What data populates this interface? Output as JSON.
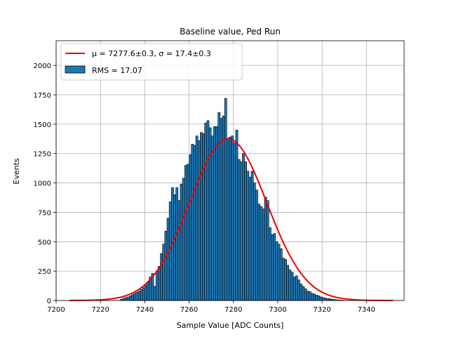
{
  "chart_data": {
    "type": "bar",
    "title": "Baseline value, Ped Run",
    "xlabel": "Sample Value [ADC Counts]",
    "ylabel": "Events",
    "xlim": [
      7200,
      7357
    ],
    "ylim": [
      0,
      2210
    ],
    "x_ticks": [
      7200,
      7220,
      7240,
      7260,
      7280,
      7300,
      7320,
      7340
    ],
    "y_ticks": [
      0,
      250,
      500,
      750,
      1000,
      1250,
      1500,
      1750,
      2000
    ],
    "grid": true,
    "legend_position": "top-left",
    "histogram": {
      "name": "RMS = 17.07",
      "color": "#1f77b4",
      "edge_color": "#000000",
      "bin_width": 1,
      "bin_starts": [
        7229,
        7230,
        7231,
        7232,
        7233,
        7234,
        7235,
        7236,
        7237,
        7238,
        7239,
        7240,
        7241,
        7242,
        7243,
        7244,
        7245,
        7246,
        7247,
        7248,
        7249,
        7250,
        7251,
        7252,
        7253,
        7254,
        7255,
        7256,
        7257,
        7258,
        7259,
        7260,
        7261,
        7262,
        7263,
        7264,
        7265,
        7266,
        7267,
        7268,
        7269,
        7270,
        7271,
        7272,
        7273,
        7274,
        7275,
        7276,
        7277,
        7278,
        7279,
        7280,
        7281,
        7282,
        7283,
        7284,
        7285,
        7286,
        7287,
        7288,
        7289,
        7290,
        7291,
        7292,
        7293,
        7294,
        7295,
        7296,
        7297,
        7298,
        7299,
        7300,
        7301,
        7302,
        7303,
        7304,
        7305,
        7306,
        7307,
        7308,
        7309,
        7310,
        7311,
        7312,
        7313,
        7314,
        7315,
        7316,
        7317,
        7318,
        7319,
        7320,
        7321,
        7322,
        7323,
        7324,
        7325,
        7326,
        7327,
        7328,
        7329
      ],
      "values": [
        10,
        20,
        25,
        30,
        40,
        50,
        60,
        70,
        80,
        95,
        110,
        130,
        160,
        200,
        230,
        120,
        250,
        290,
        400,
        480,
        590,
        700,
        840,
        960,
        900,
        960,
        850,
        990,
        1040,
        1150,
        1160,
        1240,
        1330,
        1320,
        1400,
        1360,
        1430,
        1420,
        1510,
        1530,
        1470,
        1400,
        1480,
        1480,
        1600,
        1550,
        1570,
        1720,
        1380,
        1390,
        1400,
        1340,
        1450,
        1200,
        1180,
        1250,
        1180,
        1100,
        1050,
        1100,
        1000,
        940,
        820,
        800,
        780,
        880,
        850,
        620,
        560,
        570,
        500,
        480,
        440,
        360,
        350,
        300,
        260,
        240,
        200,
        210,
        175,
        140,
        120,
        100,
        80,
        75,
        60,
        55,
        45,
        40,
        30,
        25,
        20,
        15,
        15,
        10,
        8,
        6,
        4,
        3,
        2
      ]
    },
    "fit": {
      "name": "$\\mu=7277.6{\\pm}0.3, \\sigma=17.4{\\pm}0.3$",
      "label_display": "μ = 7277.6±0.3, σ = 17.4±0.3",
      "color": "#ee0000",
      "mu": 7277.6,
      "sigma": 17.4,
      "amplitude": 1375,
      "x_range": [
        7206,
        7352
      ]
    }
  }
}
